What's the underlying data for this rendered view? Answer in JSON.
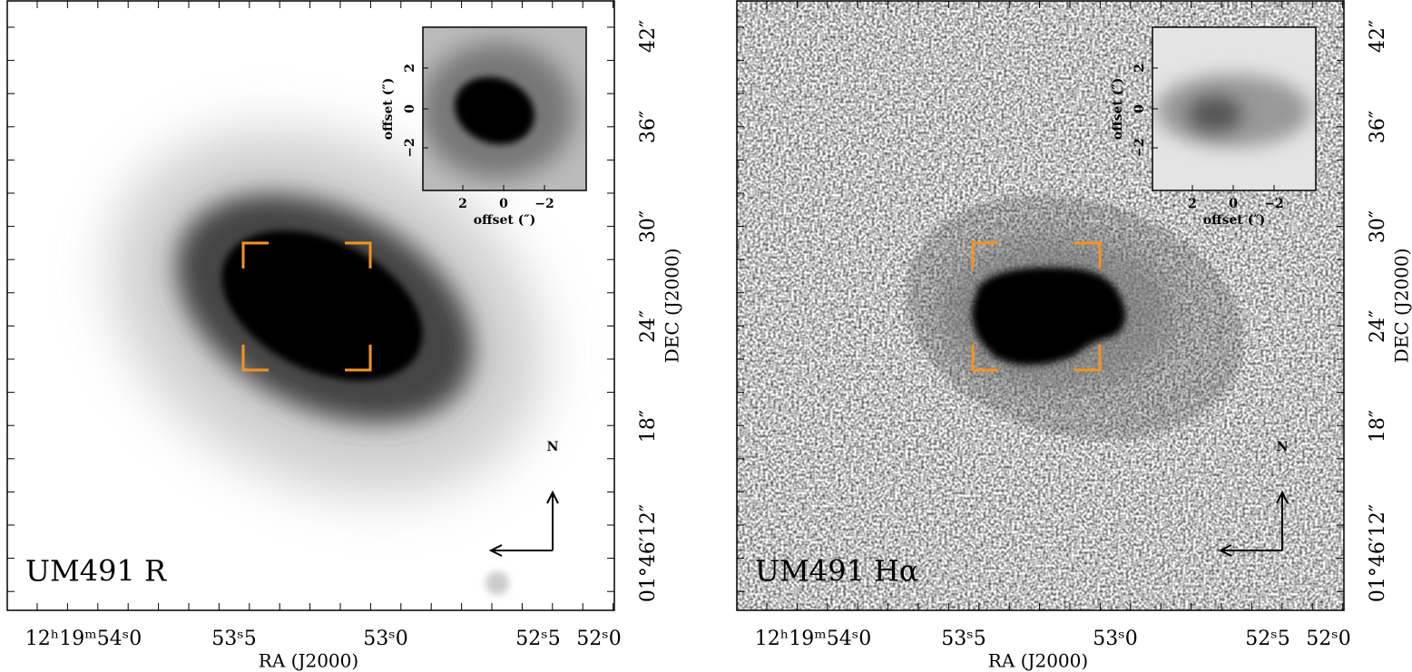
{
  "panels": [
    {
      "label": "UM491  R",
      "x_axis_label": "RA (J2000)",
      "y_axis_label": "DEC (J2000)",
      "x_ticks": [
        "12ʰ19ᵐ54ˢ0",
        "53ˢ5",
        "53ˢ0",
        "52ˢ5",
        "52ˢ0"
      ],
      "y_ticks": [
        "01°46′12″",
        "18″",
        "24″",
        "30″",
        "36″",
        "42″"
      ],
      "inset": {
        "x_axis_label": "offset (″)",
        "y_axis_label": "offset (″)",
        "x_ticks": [
          "2",
          "0",
          "−2"
        ],
        "y_ticks": [
          "−2",
          "0",
          "2"
        ]
      },
      "compass": "N"
    },
    {
      "label": "UM491  Hα",
      "x_axis_label": "RA (J2000)",
      "y_axis_label": "DEC (J2000)",
      "x_ticks": [
        "12ʰ19ᵐ54ˢ0",
        "53ˢ5",
        "53ˢ0",
        "52ˢ5",
        "52ˢ0"
      ],
      "y_ticks": [
        "01°46′12″",
        "18″",
        "24″",
        "30″",
        "36″",
        "42″"
      ],
      "inset": {
        "x_axis_label": "offset (″)",
        "y_axis_label": "offset (″)",
        "x_ticks": [
          "2",
          "0",
          "−2"
        ],
        "y_ticks": [
          "−2",
          "0",
          "2"
        ]
      },
      "compass": "N"
    }
  ]
}
